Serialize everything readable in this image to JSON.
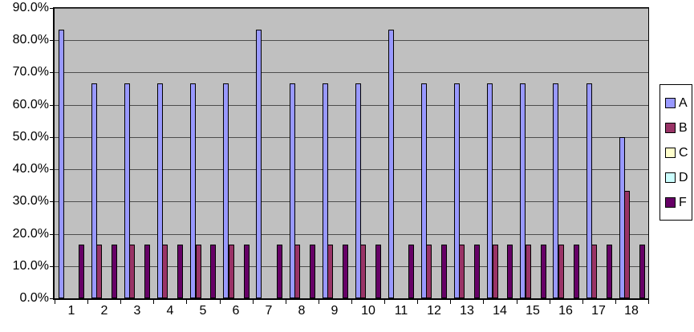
{
  "chart_data": {
    "type": "bar",
    "title": "",
    "xlabel": "",
    "ylabel": "",
    "categories": [
      "1",
      "2",
      "3",
      "4",
      "5",
      "6",
      "7",
      "8",
      "9",
      "10",
      "11",
      "12",
      "13",
      "14",
      "15",
      "16",
      "17",
      "18"
    ],
    "series": [
      {
        "name": "A",
        "color": "#9999FF",
        "values": [
          83.3,
          66.7,
          66.7,
          66.7,
          66.7,
          66.7,
          83.3,
          66.7,
          66.7,
          66.7,
          83.3,
          66.7,
          66.7,
          66.7,
          66.7,
          66.7,
          66.7,
          50.0
        ]
      },
      {
        "name": "B",
        "color": "#993366",
        "values": [
          0,
          16.7,
          16.7,
          16.7,
          16.7,
          16.7,
          0,
          16.7,
          16.7,
          16.7,
          0,
          16.7,
          16.7,
          16.7,
          16.7,
          16.7,
          16.7,
          33.3
        ]
      },
      {
        "name": "C",
        "color": "#FFFFCC",
        "values": [
          0,
          0,
          0,
          0,
          0,
          0,
          0,
          0,
          0,
          0,
          0,
          0,
          0,
          0,
          0,
          0,
          0,
          0
        ]
      },
      {
        "name": "D",
        "color": "#CCFFFF",
        "values": [
          0,
          0,
          0,
          0,
          0,
          0,
          0,
          0,
          0,
          0,
          0,
          0,
          0,
          0,
          0,
          0,
          0,
          0
        ]
      },
      {
        "name": "F",
        "color": "#660066",
        "values": [
          16.7,
          16.7,
          16.7,
          16.7,
          16.7,
          16.7,
          16.7,
          16.7,
          16.7,
          16.7,
          16.7,
          16.7,
          16.7,
          16.7,
          16.7,
          16.7,
          16.7,
          16.7
        ]
      }
    ],
    "y_ticks": [
      "0.0%",
      "10.0%",
      "20.0%",
      "30.0%",
      "40.0%",
      "50.0%",
      "60.0%",
      "70.0%",
      "80.0%",
      "90.0%"
    ],
    "ylim": [
      0,
      90
    ],
    "grid": true,
    "legend_position": "right",
    "plot_bg_color": "#C0C0C0",
    "gridline_color": "#4D4D4D",
    "bar_border_color": "#000000",
    "gap_width_percent": 150
  }
}
